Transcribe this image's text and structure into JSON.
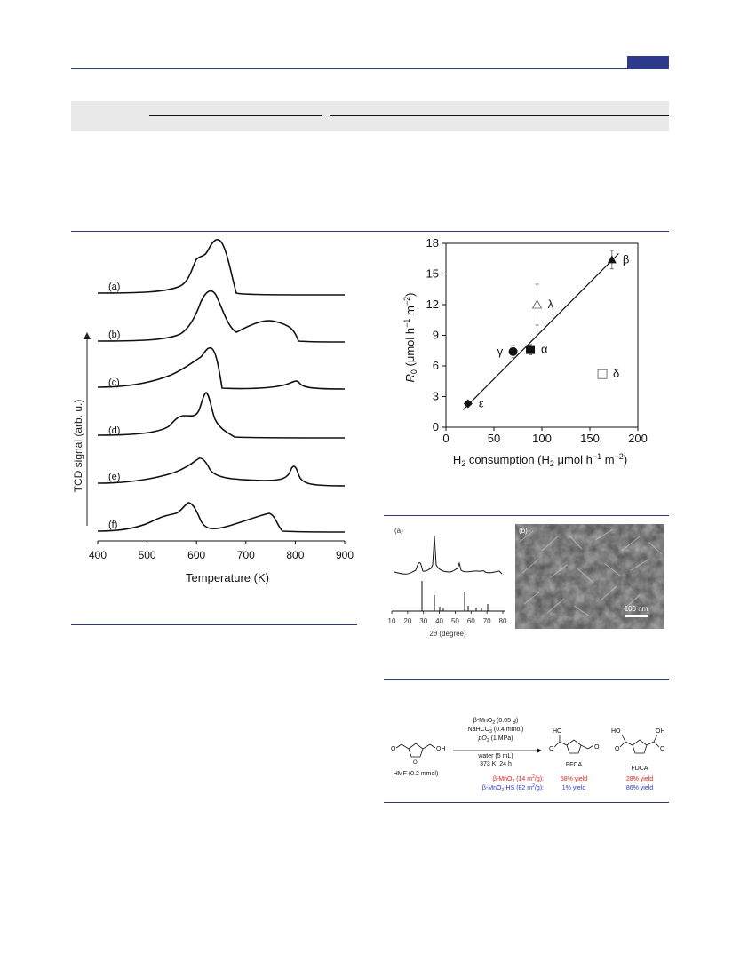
{
  "colors": {
    "accent": "#2e3a8c",
    "rule": "#2e3a7a",
    "band": "#e9e9ea",
    "red_text": "#e0201b",
    "blue_text": "#2a37c9"
  },
  "tpr": {
    "ylabel": "TCD signal (arb. u.)",
    "xlabel": "Temperature  (K)",
    "xticks": [
      "400",
      "500",
      "600",
      "700",
      "800",
      "900"
    ],
    "curve_labels": [
      "(a)",
      "(b)",
      "(c)",
      "(d)",
      "(e)",
      "(f)"
    ]
  },
  "chart_data": {
    "type": "scatter",
    "x_label_main": "H",
    "x_label_sub": "2",
    "x_label_rest": " consumption (H",
    "x_label_sub2": "2",
    "x_label_rest2": " μmol h",
    "x_label_sup1": "−1",
    "x_label_rest3": " m",
    "x_label_sup2": "−2",
    "x_label_end": ")",
    "y_label_main": "R",
    "y_label_sub": "0",
    "y_label_rest": " (μmol h",
    "y_label_sup1": "−1",
    "y_label_rest2": " m",
    "y_label_sup2": "−2",
    "y_label_end": ")",
    "xlim": [
      0,
      200
    ],
    "ylim": [
      0,
      18
    ],
    "xticks": [
      0,
      50,
      100,
      150,
      200
    ],
    "yticks": [
      0,
      3,
      6,
      9,
      12,
      15,
      18
    ],
    "points": [
      {
        "label": "β",
        "x": 173,
        "y": 16.4,
        "err": 0.9,
        "marker": "triangle-filled"
      },
      {
        "label": "λ",
        "x": 95,
        "y": 12.0,
        "err": 2.0,
        "marker": "triangle-open"
      },
      {
        "label": "γ",
        "x": 70,
        "y": 7.4,
        "err": 0.6,
        "marker": "circle-filled"
      },
      {
        "label": "α",
        "x": 88,
        "y": 7.6,
        "err": 0.5,
        "marker": "square-filled"
      },
      {
        "label": "δ",
        "x": 163,
        "y": 5.2,
        "err": 0.3,
        "marker": "square-open"
      },
      {
        "label": "ε",
        "x": 23,
        "y": 2.3,
        "err": 0.2,
        "marker": "diamond-filled"
      }
    ],
    "fit_line": {
      "x": [
        18,
        180
      ],
      "y": [
        1.7,
        17.0
      ]
    }
  },
  "xrd": {
    "panel_a": "(a)",
    "panel_b": "(b)",
    "xticks": [
      "10",
      "20",
      "30",
      "40",
      "50",
      "60",
      "70",
      "80"
    ],
    "xlabel": "2θ (degree)",
    "scale_bar": "100 nm"
  },
  "scheme": {
    "cond1": "β-MnO",
    "cond1_sub": "2",
    "cond1_rest": " (0.05 g)",
    "cond2": "NaHCO",
    "cond2_sub": "3",
    "cond2_rest": " (0.4 mmol)",
    "cond3": "pO",
    "cond3_sub": "2",
    "cond3_rest": " (1 MPa)",
    "cond4": "water (5 mL)",
    "cond5": "373 K, 24 h",
    "hmf": "HMF (0.2 mmol)",
    "ffca": "FFCA",
    "fdca": "FDCA",
    "row1_cat": "β-MnO",
    "row1_sub": "2",
    "row1_rest": " (14 m",
    "row1_sup": "2",
    "row1_end": "/g):",
    "row1_ffca": "58% yield",
    "row1_fdca": "28% yield",
    "row2_cat": "β-MnO",
    "row2_sub": "2",
    "row2_rest": "-HS (82 m",
    "row2_sup": "2",
    "row2_end": "/g):",
    "row2_ffca": "1% yield",
    "row2_fdca": "86% yield",
    "oh": "OH",
    "ho": "HO",
    "o": "O"
  }
}
